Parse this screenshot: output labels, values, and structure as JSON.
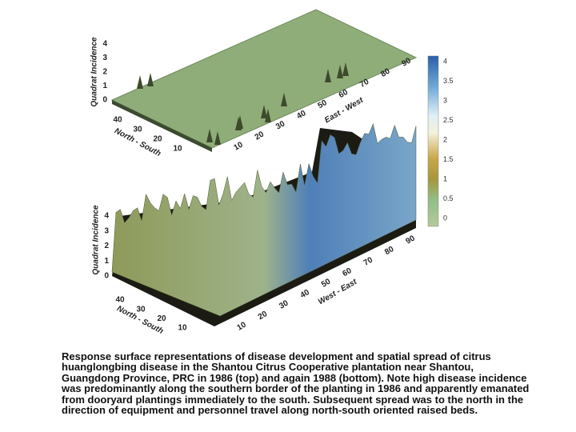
{
  "top_plot": {
    "z_label": "Quadrat Incidence",
    "z_ticks": [
      0,
      1,
      2,
      3,
      4
    ],
    "ns_label": "North - South",
    "ns_ticks": [
      40,
      30,
      20,
      10
    ],
    "ew_label": "East - West",
    "ew_ticks": [
      10,
      20,
      30,
      40,
      50,
      60,
      70,
      80,
      90
    ]
  },
  "bottom_plot": {
    "z_label": "Quadrat Incidence",
    "z_ticks": [
      0,
      1,
      2,
      3,
      4
    ],
    "ns_label": "North - South",
    "ns_ticks": [
      40,
      30,
      20,
      10
    ],
    "ew_label": "West - East",
    "ew_ticks": [
      10,
      20,
      30,
      40,
      50,
      60,
      70,
      80,
      90
    ]
  },
  "colorbar": {
    "ticks": [
      4,
      3.5,
      3,
      2.5,
      2,
      1.5,
      1,
      0.5,
      0
    ]
  },
  "caption": "Response surface representations of disease development and spatial spread of citrus huanglongbing disease in the Shantou Citrus Cooperative plantation near Shantou, Guangdong Province, PRC in 1986 (top) and again 1988 (bottom). Note high disease incidence was predominantly along the southern border of the planting in 1986 and apparently emanated from dooryard plantings immediately to the south. Subsequent spread was to the north in the direction of equipment and personnel travel along north-south oriented raised beds."
}
